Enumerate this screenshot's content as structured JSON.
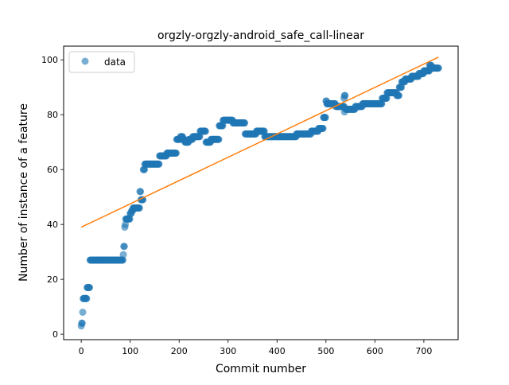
{
  "chart_data": {
    "type": "scatter",
    "title": "orgzly-orgzly-android_safe_call-linear",
    "xlabel": "Commit number",
    "ylabel": "Number of instance of a feature",
    "xlim": [
      -36,
      770
    ],
    "ylim": [
      -2,
      105
    ],
    "xticks": [
      0,
      100,
      200,
      300,
      400,
      500,
      600,
      700
    ],
    "yticks": [
      0,
      20,
      40,
      60,
      80,
      100
    ],
    "grid": false,
    "legend": {
      "position": "upper-left",
      "entries": [
        "data"
      ]
    },
    "colors": {
      "points": "#1f77b4",
      "fit": "#ff7f0e"
    },
    "series": [
      {
        "name": "data",
        "kind": "scatter",
        "steps": [
          [
            0,
            3
          ],
          [
            1,
            4
          ],
          [
            3,
            8
          ],
          [
            4,
            13
          ],
          [
            12,
            17
          ],
          [
            18,
            27
          ],
          [
            86,
            29
          ],
          [
            87,
            32
          ],
          [
            89,
            39
          ],
          [
            90,
            40
          ],
          [
            91,
            42
          ],
          [
            100,
            44
          ],
          [
            103,
            45
          ],
          [
            106,
            46
          ],
          [
            120,
            52
          ],
          [
            122,
            49
          ],
          [
            127,
            60
          ],
          [
            130,
            62
          ],
          [
            160,
            65
          ],
          [
            175,
            66
          ],
          [
            195,
            71
          ],
          [
            203,
            72
          ],
          [
            208,
            71
          ],
          [
            212,
            70
          ],
          [
            220,
            71
          ],
          [
            228,
            72
          ],
          [
            243,
            74
          ],
          [
            255,
            70
          ],
          [
            265,
            71
          ],
          [
            282,
            76
          ],
          [
            290,
            78
          ],
          [
            310,
            77
          ],
          [
            335,
            73
          ],
          [
            358,
            74
          ],
          [
            375,
            72
          ],
          [
            440,
            73
          ],
          [
            470,
            74
          ],
          [
            485,
            75
          ],
          [
            495,
            79
          ],
          [
            500,
            85
          ],
          [
            502,
            84
          ],
          [
            520,
            83
          ],
          [
            538,
            87
          ],
          [
            540,
            82
          ],
          [
            560,
            83
          ],
          [
            575,
            84
          ],
          [
            615,
            86
          ],
          [
            625,
            88
          ],
          [
            645,
            87
          ],
          [
            650,
            90
          ],
          [
            655,
            92
          ],
          [
            662,
            93
          ],
          [
            675,
            94
          ],
          [
            690,
            95
          ],
          [
            700,
            96
          ],
          [
            712,
            98
          ],
          [
            716,
            97
          ],
          [
            730,
            97
          ]
        ],
        "extra_points": [
          [
            538,
            81
          ],
          [
            537,
            86
          ],
          [
            503,
            84
          ],
          [
            709,
            96
          ]
        ]
      },
      {
        "kind": "line",
        "x": [
          0,
          730
        ],
        "y": [
          39,
          101
        ]
      }
    ]
  }
}
